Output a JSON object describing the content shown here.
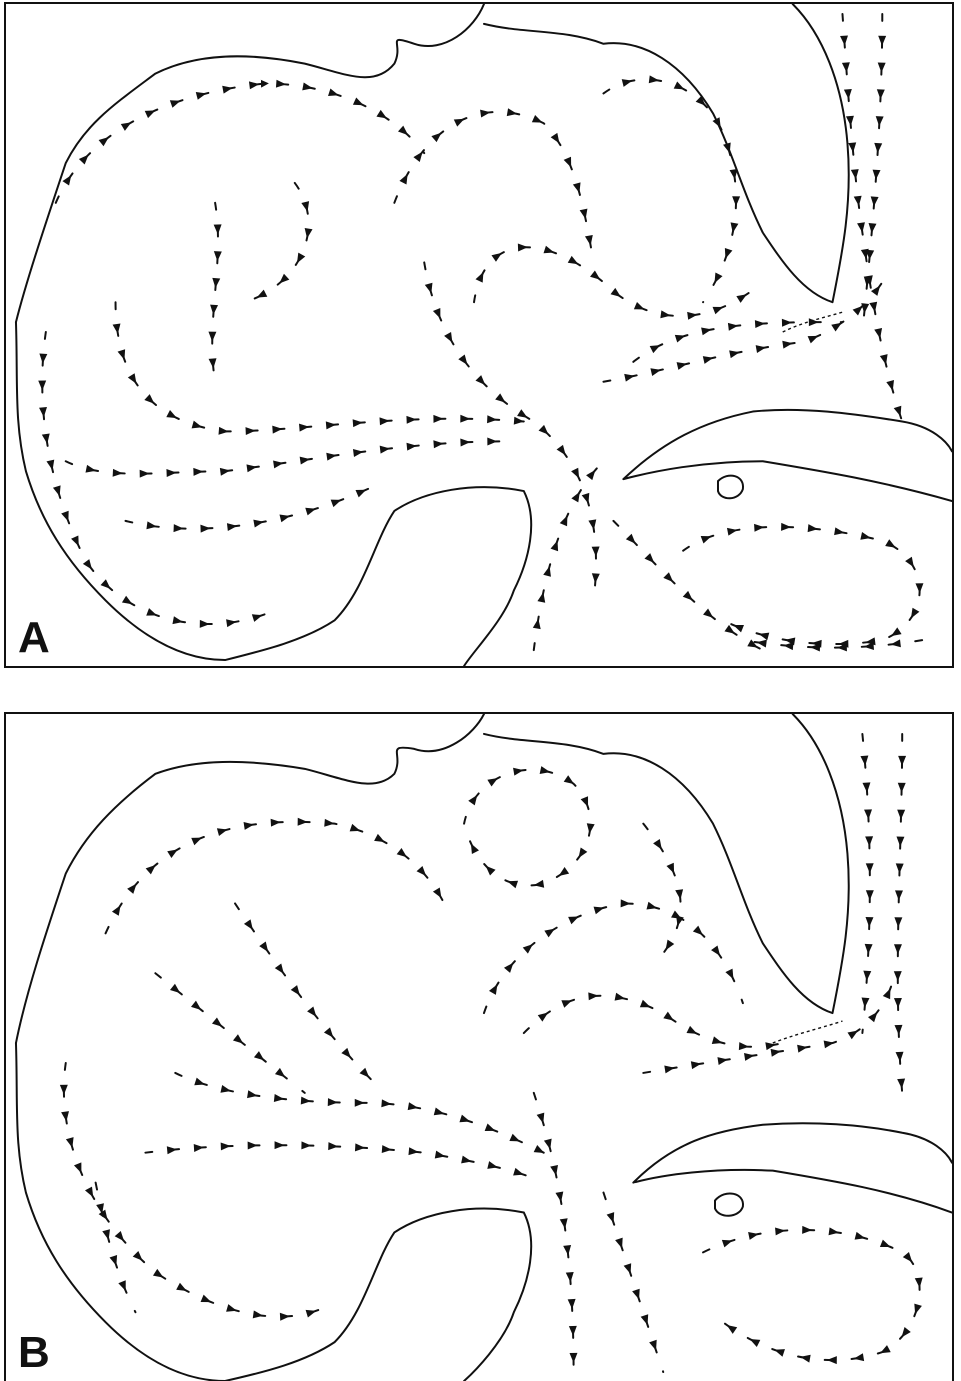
{
  "figure": {
    "panels": [
      {
        "id": "A",
        "label": "A"
      },
      {
        "id": "B",
        "label": "B"
      }
    ],
    "colors": {
      "ink": "#111111",
      "background": "#ffffff"
    }
  }
}
